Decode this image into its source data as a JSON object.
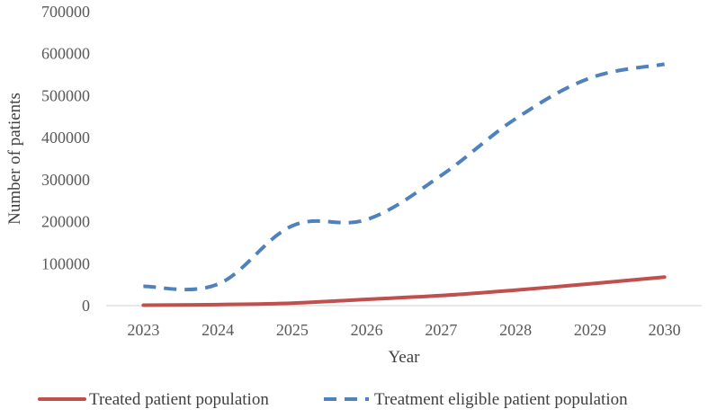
{
  "chart_data": {
    "type": "line",
    "title": "",
    "xlabel": "Year",
    "ylabel": "Number of patients",
    "x": [
      "2023",
      "2024",
      "2025",
      "2026",
      "2027",
      "2028",
      "2029",
      "2030"
    ],
    "ylim": [
      0,
      700000
    ],
    "yticks": [
      0,
      100000,
      200000,
      300000,
      400000,
      500000,
      600000,
      700000
    ],
    "ytick_labels": [
      "0",
      "100000",
      "200000",
      "300000",
      "400000",
      "500000",
      "600000",
      "700000"
    ],
    "grid": false,
    "legend_position": "bottom",
    "series": [
      {
        "name": "Treated patient population",
        "values": [
          1000,
          2500,
          6000,
          15000,
          24000,
          37000,
          52000,
          68000
        ],
        "color": "#c0504d",
        "style": "solid"
      },
      {
        "name": "Treatment eligible patient population",
        "values": [
          46000,
          51000,
          190000,
          205000,
          310000,
          445000,
          542000,
          575000
        ],
        "color": "#4f81bd",
        "style": "dashed"
      }
    ]
  }
}
